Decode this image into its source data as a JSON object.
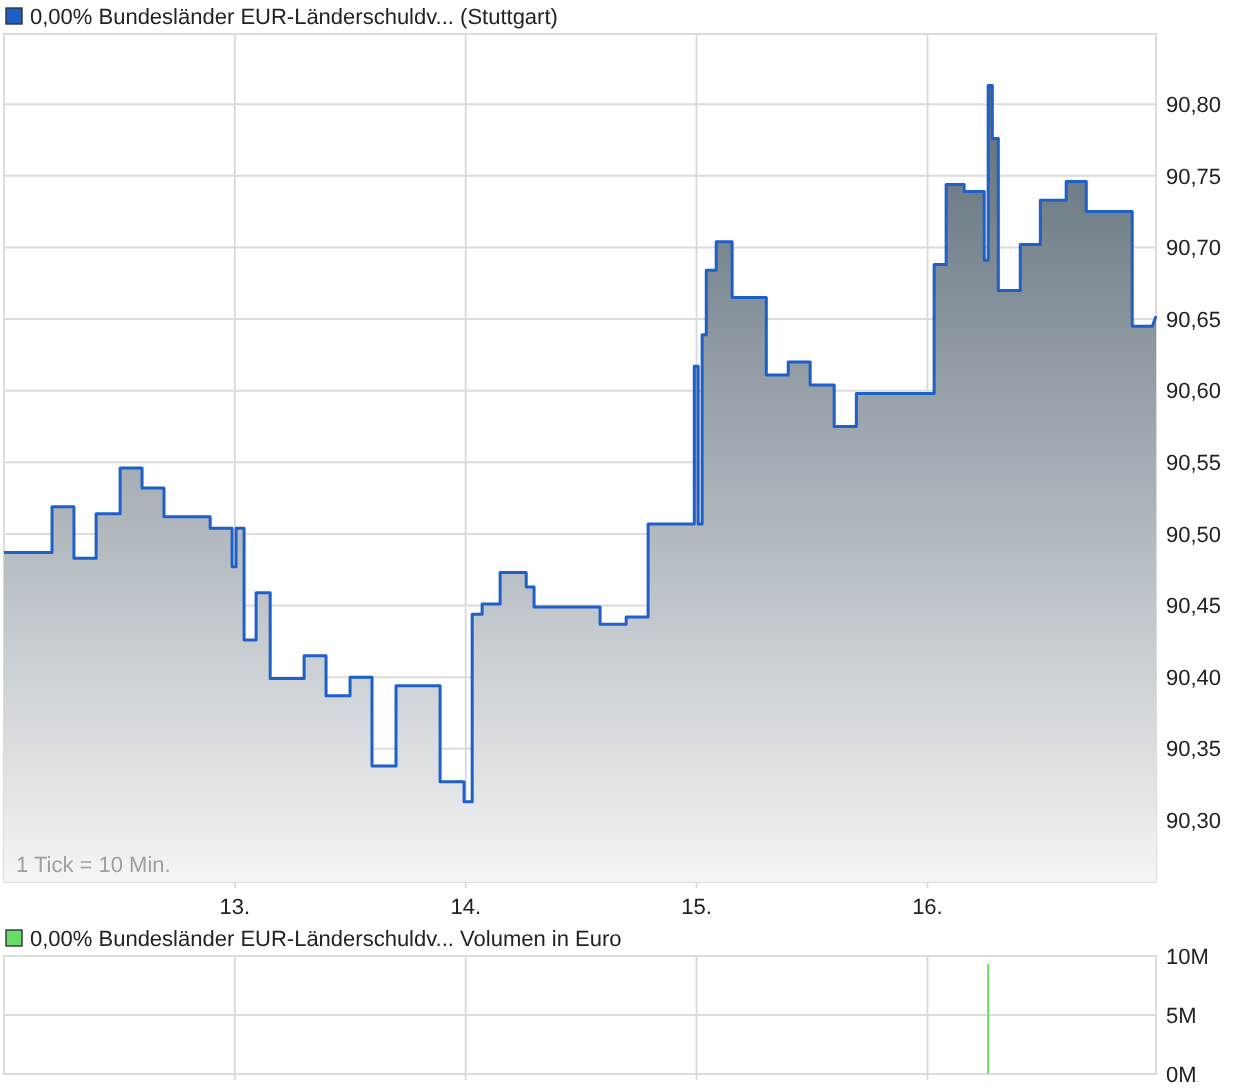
{
  "chart_data": [
    {
      "type": "area",
      "legend": "top left",
      "grid": true,
      "xlim": [
        12,
        16.99
      ],
      "ylim": [
        90.257,
        90.849
      ],
      "xticks": [
        {
          "value": 13,
          "label": "13."
        },
        {
          "value": 14,
          "label": "14."
        },
        {
          "value": 15,
          "label": "15."
        },
        {
          "value": 16,
          "label": "16."
        }
      ],
      "yticks": [
        {
          "value": 90.3,
          "label": "90,30"
        },
        {
          "value": 90.35,
          "label": "90,35"
        },
        {
          "value": 90.4,
          "label": "90,40"
        },
        {
          "value": 90.45,
          "label": "90,45"
        },
        {
          "value": 90.5,
          "label": "90,50"
        },
        {
          "value": 90.55,
          "label": "90,55"
        },
        {
          "value": 90.6,
          "label": "90,60"
        },
        {
          "value": 90.65,
          "label": "90,65"
        },
        {
          "value": 90.7,
          "label": "90,70"
        },
        {
          "value": 90.75,
          "label": "90,75"
        },
        {
          "value": 90.8,
          "label": "90,80"
        }
      ],
      "annotations": [
        "1 Tick = 10 Min."
      ],
      "series": [
        {
          "name": "0,00% Bundesländer EUR-Länderschuldv... (Stuttgart)",
          "color": "#1f5fc8",
          "x": [
            12.0,
            12.208,
            12.208,
            12.303,
            12.303,
            12.399,
            12.399,
            12.503,
            12.503,
            12.598,
            12.598,
            12.693,
            12.693,
            12.893,
            12.893,
            12.988,
            12.988,
            13.005,
            13.005,
            13.04,
            13.04,
            13.092,
            13.092,
            13.153,
            13.153,
            13.3,
            13.3,
            13.395,
            13.395,
            13.499,
            13.499,
            13.594,
            13.594,
            13.698,
            13.698,
            13.889,
            13.889,
            13.993,
            13.993,
            14.028,
            14.028,
            14.071,
            14.071,
            14.149,
            14.149,
            14.262,
            14.262,
            14.296,
            14.296,
            14.582,
            14.582,
            14.695,
            14.695,
            14.79,
            14.79,
            14.99,
            14.99,
            15.007,
            15.007,
            15.024,
            15.024,
            15.042,
            15.042,
            15.085,
            15.085,
            15.154,
            15.154,
            15.302,
            15.302,
            15.397,
            15.397,
            15.492,
            15.492,
            15.596,
            15.596,
            15.692,
            15.692,
            16.029,
            16.029,
            16.081,
            16.081,
            16.159,
            16.159,
            16.246,
            16.246,
            16.263,
            16.263,
            16.281,
            16.281,
            16.307,
            16.307,
            16.402,
            16.402,
            16.489,
            16.489,
            16.601,
            16.601,
            16.688,
            16.688,
            16.887,
            16.887,
            16.974,
            16.99
          ],
          "values": [
            90.487,
            90.487,
            90.519,
            90.519,
            90.483,
            90.483,
            90.514,
            90.514,
            90.546,
            90.546,
            90.532,
            90.532,
            90.512,
            90.512,
            90.504,
            90.504,
            90.477,
            90.477,
            90.504,
            90.504,
            90.426,
            90.426,
            90.459,
            90.459,
            90.399,
            90.399,
            90.415,
            90.415,
            90.387,
            90.387,
            90.4,
            90.4,
            90.338,
            90.338,
            90.394,
            90.394,
            90.327,
            90.327,
            90.313,
            90.313,
            90.444,
            90.444,
            90.451,
            90.451,
            90.473,
            90.473,
            90.463,
            90.463,
            90.449,
            90.449,
            90.437,
            90.437,
            90.442,
            90.442,
            90.507,
            90.507,
            90.617,
            90.617,
            90.507,
            90.507,
            90.639,
            90.639,
            90.684,
            90.684,
            90.704,
            90.704,
            90.665,
            90.665,
            90.611,
            90.611,
            90.62,
            90.62,
            90.604,
            90.604,
            90.575,
            90.575,
            90.598,
            90.598,
            90.688,
            90.688,
            90.744,
            90.744,
            90.739,
            90.739,
            90.691,
            90.691,
            90.813,
            90.813,
            90.776,
            90.776,
            90.67,
            90.67,
            90.702,
            90.702,
            90.733,
            90.733,
            90.746,
            90.746,
            90.725,
            90.725,
            90.645,
            90.645,
            90.652
          ]
        }
      ]
    },
    {
      "type": "bar",
      "legend": "top left",
      "grid": true,
      "tick_labels": "y",
      "xlim": [
        12,
        16.99
      ],
      "ylim": [
        0,
        10000000
      ],
      "xticks": [
        {
          "value": 13,
          "label": null
        },
        {
          "value": 14,
          "label": null
        },
        {
          "value": 15,
          "label": null
        },
        {
          "value": 16,
          "label": null
        }
      ],
      "yticks": [
        {
          "value": 0,
          "label": "0M"
        },
        {
          "value": 5000000,
          "label": "5M"
        },
        {
          "value": 10000000,
          "label": "10M"
        }
      ],
      "series": [
        {
          "name": "0,00% Bundesländer EUR-Länderschuldv... Volumen in Euro",
          "color": "#66dd66",
          "x": [
            16.263
          ],
          "values": [
            9300000
          ]
        }
      ]
    }
  ]
}
